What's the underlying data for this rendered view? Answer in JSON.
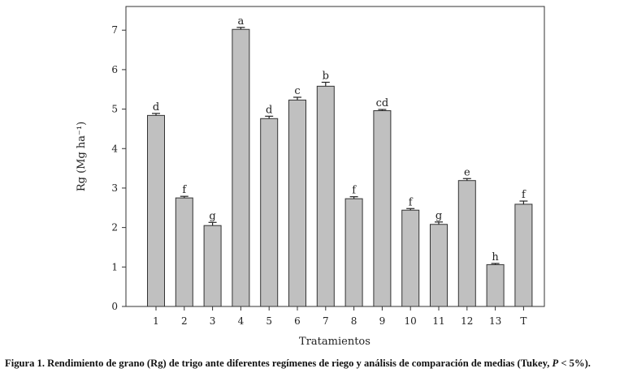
{
  "chart_data": {
    "type": "bar",
    "categories": [
      "1",
      "2",
      "3",
      "4",
      "5",
      "6",
      "7",
      "8",
      "9",
      "10",
      "11",
      "12",
      "13",
      "T"
    ],
    "values": [
      4.84,
      2.75,
      2.05,
      7.02,
      4.76,
      5.23,
      5.58,
      2.73,
      4.96,
      2.44,
      2.08,
      3.19,
      1.06,
      2.59
    ],
    "errors": [
      0.05,
      0.04,
      0.08,
      0.05,
      0.06,
      0.07,
      0.1,
      0.05,
      0.03,
      0.04,
      0.06,
      0.05,
      0.03,
      0.08
    ],
    "letters": [
      "d",
      "f",
      "g",
      "a",
      "d",
      "c",
      "b",
      "f",
      "cd",
      "f",
      "g",
      "e",
      "h",
      "f"
    ],
    "xlabel": "Tratamientos",
    "ylabel": "Rg (Mg ha⁻¹)",
    "ylim": [
      0,
      7.6
    ],
    "yticks": [
      0,
      1,
      2,
      3,
      4,
      5,
      6,
      7
    ],
    "grid": false,
    "bar_color": "#c0c0c0",
    "bar_stroke": "#333333"
  },
  "caption": {
    "prefix": "Figura 1. Rendimiento de grano (Rg) de trigo ante diferentes regímenes de riego y análisis de comparación de medias (Tukey, ",
    "italic": "P",
    "suffix": " < 5%)."
  }
}
